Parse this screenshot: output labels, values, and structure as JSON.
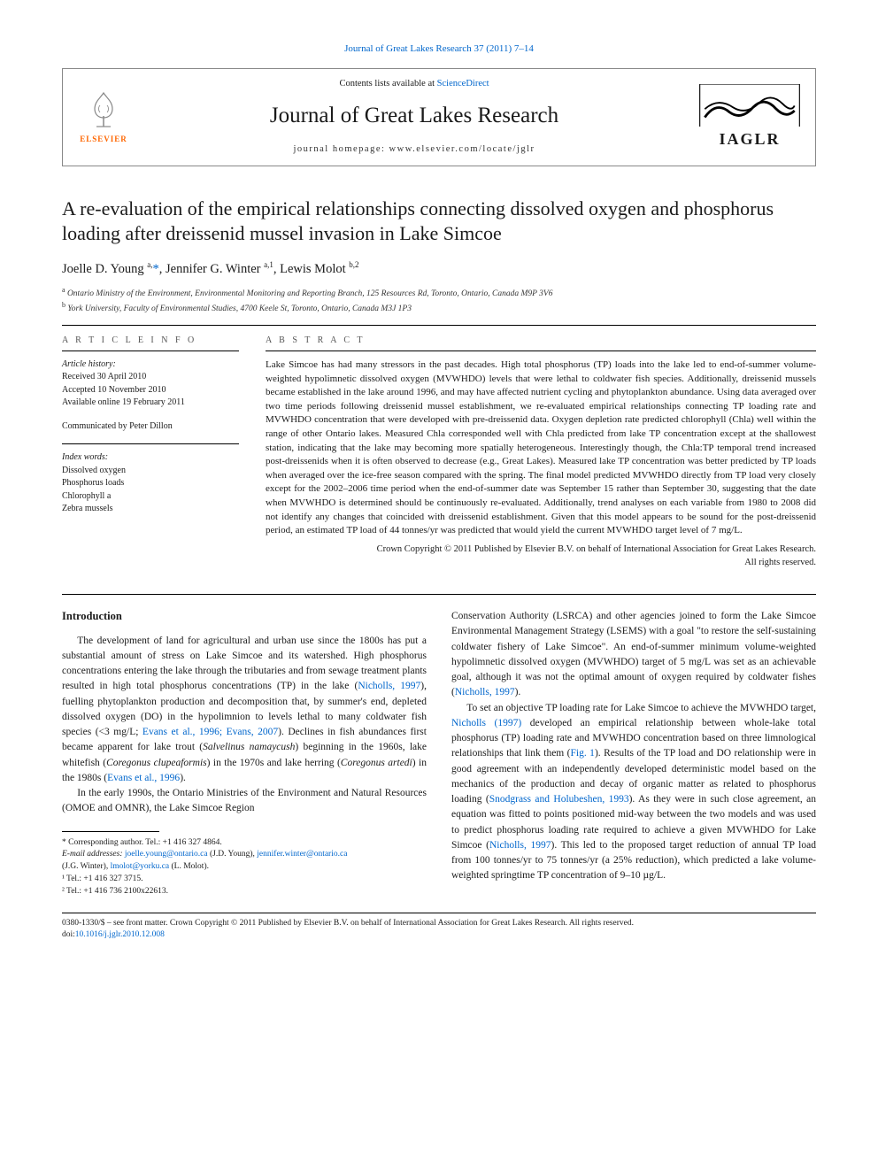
{
  "top_link": "Journal of Great Lakes Research 37 (2011) 7–14",
  "header": {
    "contents_prefix": "Contents lists available at ",
    "contents_link": "ScienceDirect",
    "journal_name": "Journal of Great Lakes Research",
    "homepage_prefix": "journal homepage: ",
    "homepage_url": "www.elsevier.com/locate/jglr",
    "elsevier_label": "ELSEVIER",
    "iaglr_label": "IAGLR"
  },
  "title": "A re-evaluation of the empirical relationships connecting dissolved oxygen and phosphorus loading after dreissenid mussel invasion in Lake Simcoe",
  "authors_html": "Joelle D. Young <sup>a,</sup><a href=\"#\">*</a>, Jennifer G. Winter <sup>a,1</sup>, Lewis Molot <sup>b,2</sup>",
  "affiliations": {
    "a": "Ontario Ministry of the Environment, Environmental Monitoring and Reporting Branch, 125 Resources Rd, Toronto, Ontario, Canada M9P 3V6",
    "b": "York University, Faculty of Environmental Studies, 4700 Keele St, Toronto, Ontario, Canada M3J 1P3"
  },
  "article_info": {
    "heading": "A R T I C L E   I N F O",
    "history_label": "Article history:",
    "history": [
      "Received 30 April 2010",
      "Accepted 10 November 2010",
      "Available online 19 February 2011"
    ],
    "communicated": "Communicated by Peter Dillon",
    "index_label": "Index words:",
    "index_words": [
      "Dissolved oxygen",
      "Phosphorus loads",
      "Chlorophyll a",
      "Zebra mussels"
    ]
  },
  "abstract": {
    "heading": "A B S T R A C T",
    "text": "Lake Simcoe has had many stressors in the past decades. High total phosphorus (TP) loads into the lake led to end-of-summer volume-weighted hypolimnetic dissolved oxygen (MVWHDO) levels that were lethal to coldwater fish species. Additionally, dreissenid mussels became established in the lake around 1996, and may have affected nutrient cycling and phytoplankton abundance. Using data averaged over two time periods following dreissenid mussel establishment, we re-evaluated empirical relationships connecting TP loading rate and MVWHDO concentration that were developed with pre-dreissenid data. Oxygen depletion rate predicted chlorophyll (Chla) well within the range of other Ontario lakes. Measured Chla corresponded well with Chla predicted from lake TP concentration except at the shallowest station, indicating that the lake may becoming more spatially heterogeneous. Interestingly though, the Chla:TP temporal trend increased post-dreissenids when it is often observed to decrease (e.g., Great Lakes). Measured lake TP concentration was better predicted by TP loads when averaged over the ice-free season compared with the spring. The final model predicted MVWHDO directly from TP load very closely except for the 2002–2006 time period when the end-of-summer date was September 15 rather than September 30, suggesting that the date when MVWHDO is determined should be continuously re-evaluated. Additionally, trend analyses on each variable from 1980 to 2008 did not identify any changes that coincided with dreissenid establishment. Given that this model appears to be sound for the post-dreissenid period, an estimated TP load of 44 tonnes/yr was predicted that would yield the current MVWHDO target level of 7 mg/L.",
    "copyright1": "Crown Copyright © 2011 Published by Elsevier B.V. on behalf of International Association for Great Lakes Research.",
    "copyright2": "All rights reserved."
  },
  "intro": {
    "heading": "Introduction",
    "p1_html": "The development of land for agricultural and urban use since the 1800s has put a substantial amount of stress on Lake Simcoe and its watershed. High phosphorus concentrations entering the lake through the tributaries and from sewage treatment plants resulted in high total phosphorus concentrations (TP) in the lake (<a href=\"#\">Nicholls, 1997</a>), fuelling phytoplankton production and decomposition that, by summer's end, depleted dissolved oxygen (DO) in the hypolimnion to levels lethal to many coldwater fish species (&lt;3 mg/L; <a href=\"#\">Evans et al., 1996; Evans, 2007</a>). Declines in fish abundances first became apparent for lake trout (<span class=\"ital\">Salvelinus namaycush</span>) beginning in the 1960s, lake whitefish (<span class=\"ital\">Coregonus clupeaformis</span>) in the 1970s and lake herring (<span class=\"ital\">Coregonus artedi</span>) in the 1980s (<a href=\"#\">Evans et al., 1996</a>).",
    "p2": "In the early 1990s, the Ontario Ministries of the Environment and Natural Resources (OMOE and OMNR), the Lake Simcoe Region",
    "p3_html": "Conservation Authority (LSRCA) and other agencies joined to form the Lake Simcoe Environmental Management Strategy (LSEMS) with a goal \"to restore the self-sustaining coldwater fishery of Lake Simcoe\". An end-of-summer minimum volume-weighted hypolimnetic dissolved oxygen (MVWHDO) target of 5 mg/L was set as an achievable goal, although it was not the optimal amount of oxygen required by coldwater fishes (<a href=\"#\">Nicholls, 1997</a>).",
    "p4_html": "To set an objective TP loading rate for Lake Simcoe to achieve the MVWHDO target, <a href=\"#\">Nicholls (1997)</a> developed an empirical relationship between whole-lake total phosphorus (TP) loading rate and MVWHDO concentration based on three limnological relationships that link them (<a href=\"#\">Fig. 1</a>). Results of the TP load and DO relationship were in good agreement with an independently developed deterministic model based on the mechanics of the production and decay of organic matter as related to phosphorus loading (<a href=\"#\">Snodgrass and Holubeshen, 1993</a>). As they were in such close agreement, an equation was fitted to points positioned mid-way between the two models and was used to predict phosphorus loading rate required to achieve a given MVWHDO for Lake Simcoe (<a href=\"#\">Nicholls, 1997</a>). This led to the proposed target reduction of annual TP load from 100 tonnes/yr to 75 tonnes/yr (a 25% reduction), which predicted a lake volume-weighted springtime TP concentration of 9–10 µg/L."
  },
  "footnotes": {
    "corr": "* Corresponding author. Tel.: +1 416 327 4864.",
    "email_label": "E-mail addresses:",
    "email1": "joelle.young@ontario.ca",
    "email1_name": "(J.D. Young),",
    "email2": "jennifer.winter@ontario.ca",
    "email2_name": "(J.G. Winter),",
    "email3": "lmolot@yorku.ca",
    "email3_name": "(L. Molot).",
    "f1": "¹ Tel.: +1 416 327 3715.",
    "f2": "² Tel.: +1 416 736 2100x22613."
  },
  "bottom": {
    "line": "0380-1330/$ – see front matter. Crown Copyright © 2011 Published by Elsevier B.V. on behalf of International Association for Great Lakes Research. All rights reserved.",
    "doi_prefix": "doi:",
    "doi": "10.1016/j.jglr.2010.12.008"
  },
  "colors": {
    "link": "#0066cc",
    "text": "#1a1a1a",
    "muted": "#555555",
    "elsevier_orange": "#ff6600",
    "rule": "#000000"
  }
}
